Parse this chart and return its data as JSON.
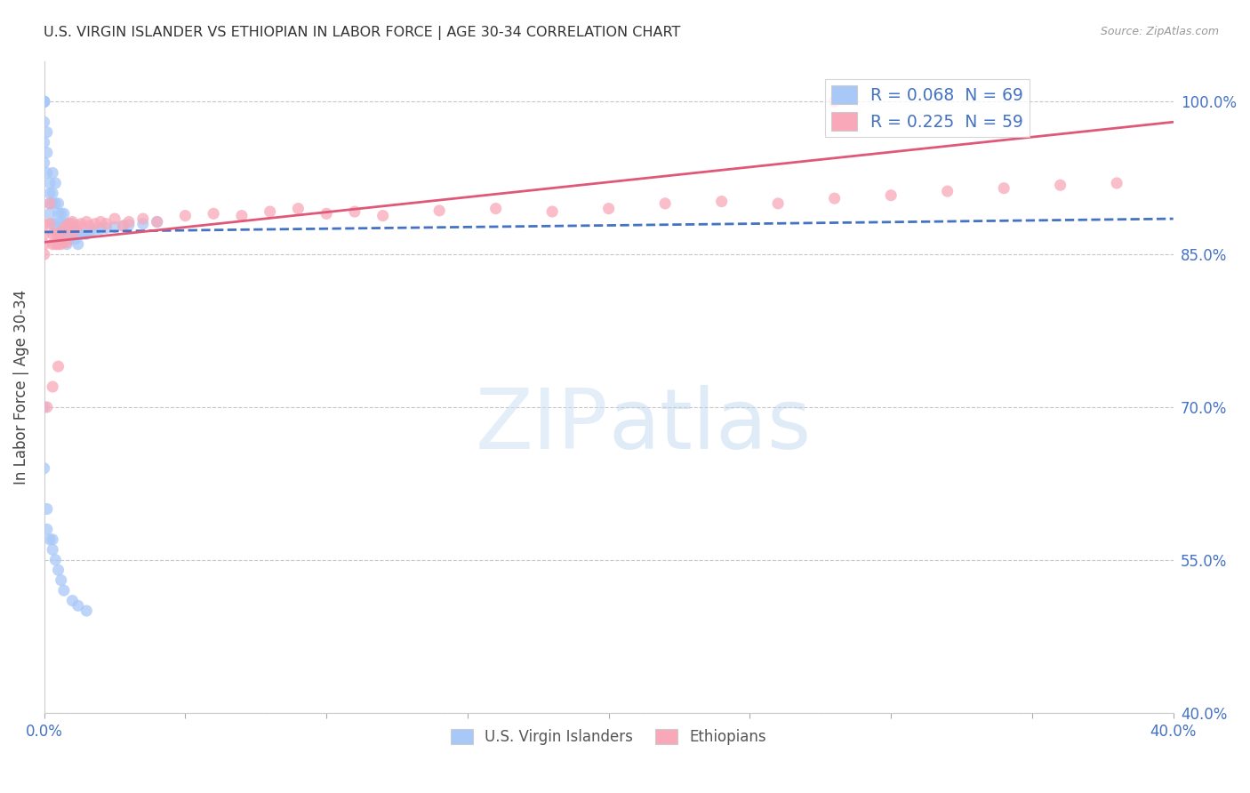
{
  "title": "U.S. VIRGIN ISLANDER VS ETHIOPIAN IN LABOR FORCE | AGE 30-34 CORRELATION CHART",
  "source": "Source: ZipAtlas.com",
  "ylabel": "In Labor Force | Age 30-34",
  "xlim": [
    0.0,
    0.4
  ],
  "ylim": [
    0.4,
    1.04
  ],
  "ytick_vals": [
    0.4,
    0.55,
    0.7,
    0.85,
    1.0
  ],
  "ytick_labels": [
    "40.0%",
    "55.0%",
    "70.0%",
    "85.0%",
    "100.0%"
  ],
  "xtick_vals": [
    0.0,
    0.05,
    0.1,
    0.15,
    0.2,
    0.25,
    0.3,
    0.35,
    0.4
  ],
  "tick_label_color": "#4472c4",
  "grid_color": "#c8c8c8",
  "background_color": "#ffffff",
  "title_color": "#333333",
  "axis_label_color": "#444444",
  "virgin_islander_dot_color": "#a8c8f8",
  "ethiopian_dot_color": "#f8a8b8",
  "virgin_islander_line_color": "#4472c4",
  "ethiopian_line_color": "#e05878",
  "virgin_islander_R": 0.068,
  "virgin_islander_N": 69,
  "ethiopian_R": 0.225,
  "ethiopian_N": 59,
  "watermark_color": "#cce0f5",
  "vi_x": [
    0.0,
    0.0,
    0.0,
    0.0,
    0.0,
    0.0,
    0.0,
    0.0,
    0.001,
    0.001,
    0.001,
    0.002,
    0.002,
    0.002,
    0.002,
    0.003,
    0.003,
    0.003,
    0.003,
    0.004,
    0.004,
    0.004,
    0.005,
    0.005,
    0.005,
    0.006,
    0.006,
    0.006,
    0.007,
    0.007,
    0.007,
    0.007,
    0.008,
    0.008,
    0.008,
    0.009,
    0.009,
    0.01,
    0.01,
    0.011,
    0.011,
    0.012,
    0.012,
    0.013,
    0.014,
    0.015,
    0.016,
    0.018,
    0.02,
    0.022,
    0.025,
    0.028,
    0.03,
    0.035,
    0.04,
    0.0,
    0.0,
    0.001,
    0.001,
    0.002,
    0.003,
    0.003,
    0.004,
    0.005,
    0.006,
    0.007,
    0.01,
    0.012,
    0.015
  ],
  "vi_y": [
    1.0,
    1.0,
    1.0,
    1.0,
    1.0,
    0.98,
    0.96,
    0.94,
    0.97,
    0.95,
    0.93,
    0.92,
    0.91,
    0.9,
    0.89,
    0.93,
    0.91,
    0.9,
    0.88,
    0.92,
    0.9,
    0.88,
    0.9,
    0.89,
    0.87,
    0.89,
    0.88,
    0.87,
    0.89,
    0.88,
    0.875,
    0.87,
    0.88,
    0.87,
    0.86,
    0.875,
    0.865,
    0.88,
    0.87,
    0.875,
    0.865,
    0.87,
    0.86,
    0.87,
    0.87,
    0.87,
    0.872,
    0.874,
    0.875,
    0.876,
    0.877,
    0.878,
    0.879,
    0.88,
    0.882,
    0.7,
    0.64,
    0.6,
    0.58,
    0.57,
    0.57,
    0.56,
    0.55,
    0.54,
    0.53,
    0.52,
    0.51,
    0.505,
    0.5
  ],
  "eth_x": [
    0.0,
    0.0,
    0.0,
    0.0,
    0.002,
    0.002,
    0.003,
    0.003,
    0.004,
    0.004,
    0.005,
    0.005,
    0.006,
    0.006,
    0.007,
    0.007,
    0.008,
    0.008,
    0.009,
    0.01,
    0.01,
    0.011,
    0.012,
    0.013,
    0.015,
    0.016,
    0.018,
    0.02,
    0.022,
    0.025,
    0.028,
    0.03,
    0.035,
    0.04,
    0.05,
    0.06,
    0.07,
    0.08,
    0.09,
    0.1,
    0.11,
    0.12,
    0.14,
    0.16,
    0.18,
    0.2,
    0.22,
    0.24,
    0.26,
    0.28,
    0.3,
    0.32,
    0.34,
    0.36,
    0.38,
    0.001,
    0.003,
    0.005,
    0.28
  ],
  "eth_y": [
    0.88,
    0.87,
    0.86,
    0.85,
    0.9,
    0.88,
    0.87,
    0.86,
    0.87,
    0.86,
    0.87,
    0.86,
    0.872,
    0.86,
    0.875,
    0.862,
    0.878,
    0.862,
    0.88,
    0.882,
    0.87,
    0.875,
    0.878,
    0.88,
    0.882,
    0.878,
    0.88,
    0.882,
    0.88,
    0.885,
    0.878,
    0.882,
    0.885,
    0.882,
    0.888,
    0.89,
    0.888,
    0.892,
    0.895,
    0.89,
    0.892,
    0.888,
    0.893,
    0.895,
    0.892,
    0.895,
    0.9,
    0.902,
    0.9,
    0.905,
    0.908,
    0.912,
    0.915,
    0.918,
    0.92,
    0.7,
    0.72,
    0.74,
    1.0
  ]
}
